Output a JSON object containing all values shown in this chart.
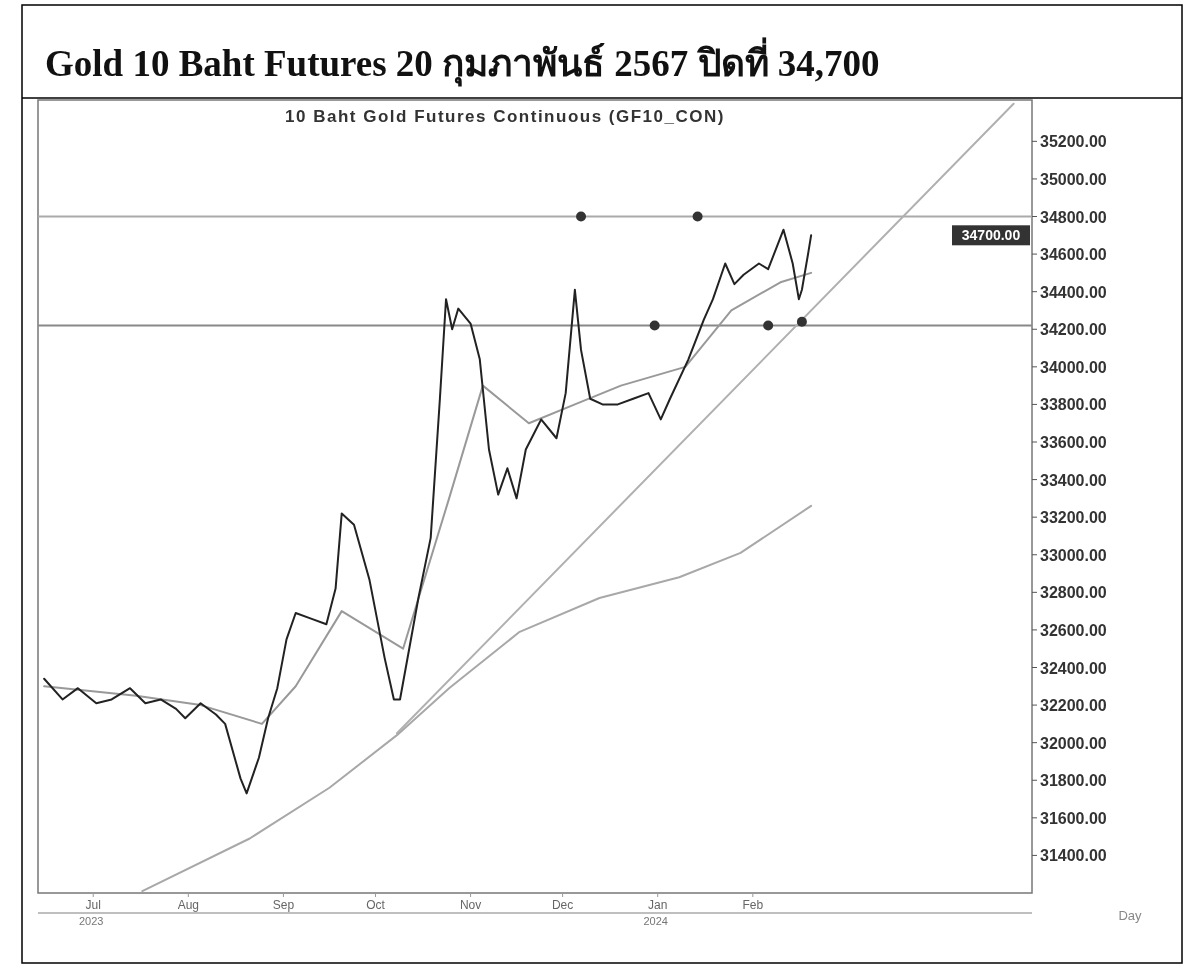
{
  "chart_data": {
    "type": "line",
    "title": "Gold 10 Baht Futures 20 กุมภาพันธ์ 2567 ปิดที่ 34,700",
    "subtitle": "10 Baht Gold Futures Continuous (GF10_CON)",
    "xlabel": "Day",
    "annotations": [
      "2023",
      "2024",
      "34700.00"
    ],
    "xlim": [
      "2023-06-13",
      "2024-05-02"
    ],
    "ylim": [
      31200,
      35420
    ],
    "xticks": [
      {
        "value": "2023-07-01",
        "label": "Jul"
      },
      {
        "value": "2023-08-01",
        "label": "Aug"
      },
      {
        "value": "2023-09-01",
        "label": "Sep"
      },
      {
        "value": "2023-10-01",
        "label": "Oct"
      },
      {
        "value": "2023-11-01",
        "label": "Nov"
      },
      {
        "value": "2023-12-01",
        "label": "Dec"
      },
      {
        "value": "2024-01-01",
        "label": "Jan"
      },
      {
        "value": "2024-02-01",
        "label": "Feb"
      }
    ],
    "yticks": [
      {
        "value": 31400,
        "label": "31400.00"
      },
      {
        "value": 31600,
        "label": "31600.00"
      },
      {
        "value": 31800,
        "label": "31800.00"
      },
      {
        "value": 32000,
        "label": "32000.00"
      },
      {
        "value": 32200,
        "label": "32200.00"
      },
      {
        "value": 32400,
        "label": "32400.00"
      },
      {
        "value": 32600,
        "label": "32600.00"
      },
      {
        "value": 32800,
        "label": "32800.00"
      },
      {
        "value": 33000,
        "label": "33000.00"
      },
      {
        "value": 33200,
        "label": "33200.00"
      },
      {
        "value": 33400,
        "label": "33400.00"
      },
      {
        "value": 33600,
        "label": "33600.00"
      },
      {
        "value": 33800,
        "label": "33800.00"
      },
      {
        "value": 34000,
        "label": "34000.00"
      },
      {
        "value": 34200,
        "label": "34200.00"
      },
      {
        "value": 34400,
        "label": "34400.00"
      },
      {
        "value": 34600,
        "label": "34600.00"
      },
      {
        "value": 34800,
        "label": "34800.00"
      },
      {
        "value": 35000,
        "label": "35000.00"
      },
      {
        "value": 35200,
        "label": "35200.00"
      }
    ],
    "ref_lines": [
      {
        "axis": "y",
        "value": 34800,
        "color": "#aaaaaa"
      },
      {
        "axis": "y",
        "value": 34220,
        "color": "#888888"
      }
    ],
    "series": [
      {
        "color": "#b0b0b0",
        "x": [
          "2023-10-08",
          "2024-04-26"
        ],
        "values": [
          32050,
          35400
        ]
      },
      {
        "color": "#a8a8a8",
        "x": [
          "2023-07-17",
          "2023-08-21",
          "2023-09-16",
          "2023-10-08",
          "2023-10-25",
          "2023-11-17",
          "2023-12-13",
          "2024-01-08",
          "2024-01-28",
          "2024-02-20"
        ],
        "values": [
          31210,
          31490,
          31760,
          32040,
          32290,
          32590,
          32770,
          32880,
          33010,
          33260
        ]
      },
      {
        "color": "#999999",
        "x": [
          "2023-06-15",
          "2023-07-15",
          "2023-08-05",
          "2023-08-25",
          "2023-09-05",
          "2023-09-20",
          "2023-10-10",
          "2023-10-25",
          "2023-11-05",
          "2023-11-20",
          "2023-12-05",
          "2023-12-20",
          "2024-01-10",
          "2024-01-25",
          "2024-02-10",
          "2024-02-20"
        ],
        "values": [
          32300,
          32250,
          32200,
          32100,
          32300,
          32700,
          32500,
          33300,
          33900,
          33700,
          33800,
          33900,
          34000,
          34300,
          34450,
          34500
        ]
      },
      {
        "color": "#222222",
        "x": [
          "2023-06-15",
          "2023-06-21",
          "2023-06-26",
          "2023-07-02",
          "2023-07-07",
          "2023-07-13",
          "2023-07-18",
          "2023-07-23",
          "2023-07-28",
          "2023-07-31",
          "2023-08-05",
          "2023-08-10",
          "2023-08-13",
          "2023-08-18",
          "2023-08-20",
          "2023-08-24",
          "2023-08-27",
          "2023-08-30",
          "2023-09-02",
          "2023-09-05",
          "2023-09-10",
          "2023-09-15",
          "2023-09-18",
          "2023-09-20",
          "2023-09-24",
          "2023-09-29",
          "2023-10-04",
          "2023-10-07",
          "2023-10-09",
          "2023-10-12",
          "2023-10-15",
          "2023-10-19",
          "2023-10-22",
          "2023-10-24",
          "2023-10-26",
          "2023-10-28",
          "2023-11-01",
          "2023-11-04",
          "2023-11-07",
          "2023-11-10",
          "2023-11-13",
          "2023-11-16",
          "2023-11-19",
          "2023-11-24",
          "2023-11-29",
          "2023-12-02",
          "2023-12-05",
          "2023-12-07",
          "2023-12-10",
          "2023-12-14",
          "2023-12-19",
          "2023-12-24",
          "2023-12-29",
          "2024-01-02",
          "2024-01-05",
          "2024-01-11",
          "2024-01-16",
          "2024-01-19",
          "2024-01-23",
          "2024-01-26",
          "2024-01-29",
          "2024-02-03",
          "2024-02-06",
          "2024-02-11",
          "2024-02-14",
          "2024-02-16",
          "2024-02-17",
          "2024-02-19",
          "2024-02-20"
        ],
        "values": [
          32340,
          32230,
          32290,
          32210,
          32230,
          32290,
          32210,
          32230,
          32180,
          32130,
          32210,
          32150,
          32100,
          31810,
          31730,
          31920,
          32130,
          32290,
          32550,
          32690,
          32660,
          32630,
          32820,
          33220,
          33160,
          32870,
          32450,
          32230,
          32230,
          32500,
          32770,
          33090,
          33830,
          34360,
          34200,
          34310,
          34230,
          34040,
          33560,
          33320,
          33460,
          33300,
          33560,
          33720,
          33620,
          33860,
          34410,
          34090,
          33830,
          33800,
          33800,
          33830,
          33860,
          33720,
          33830,
          34040,
          34250,
          34360,
          34550,
          34440,
          34490,
          34550,
          34520,
          34730,
          34550,
          34360,
          34410,
          34600,
          34700
        ]
      },
      {
        "type": "scatter",
        "marker": "circle",
        "color": "#333333",
        "x": [
          "2023-12-07",
          "2024-01-14",
          "2023-12-31",
          "2024-02-06",
          "2024-02-17"
        ],
        "values": [
          34800,
          34800,
          34220,
          34220,
          34240
        ]
      }
    ]
  }
}
